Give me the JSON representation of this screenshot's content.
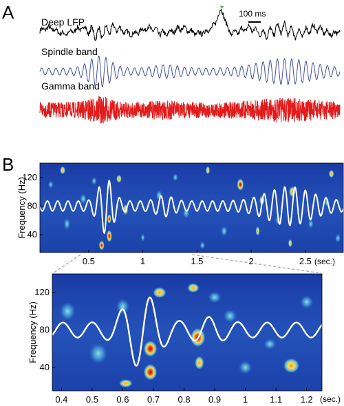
{
  "figure": {
    "panel_a": {
      "letter": "A",
      "asterisk": "*",
      "scale_bar_label": "100 ms",
      "traces": [
        {
          "label": "Deep LFP",
          "color": "#000000"
        },
        {
          "label": "Spindle band",
          "color": "#3f4d9e"
        },
        {
          "label": "Gamma band",
          "color": "#e21b1b"
        }
      ],
      "asterisk_color": "#2c9a2c"
    },
    "panel_b": {
      "letter": "B"
    }
  },
  "chart_data": [
    {
      "type": "heatmap",
      "title": "",
      "xlabel": "",
      "x_unit_label": "(sec.)",
      "ylabel": "Frequency (Hz)",
      "xlim": [
        0.05,
        2.85
      ],
      "ylim": [
        15,
        140
      ],
      "x_ticks": [
        0.5,
        1,
        1.5,
        2,
        2.5
      ],
      "x_tick_labels": [
        "0.5",
        "1",
        "1.5",
        "2",
        "2.5"
      ],
      "y_ticks": [
        40,
        80,
        120
      ],
      "y_tick_labels": [
        "40",
        "80",
        "120"
      ],
      "overlay_color": "#ffffff",
      "colormap": [
        "#0f2a96",
        "#2b64c8",
        "#66c4e0",
        "#f2e45a",
        "#f07a1e",
        "#b50f0f"
      ]
    },
    {
      "type": "heatmap",
      "title": "",
      "xlabel": "",
      "x_unit_label": "(sec.)",
      "ylabel": "Frequency (Hz)",
      "xlim": [
        0.37,
        1.25
      ],
      "ylim": [
        15,
        140
      ],
      "x_ticks": [
        0.4,
        0.5,
        0.6,
        0.7,
        0.8,
        0.9,
        1,
        1.1,
        1.2
      ],
      "x_tick_labels": [
        "0.4",
        "0.5",
        "0.6",
        "0.7",
        "0.8",
        "0.9",
        "1",
        "1.1",
        "1.2"
      ],
      "y_ticks": [
        40,
        80,
        120
      ],
      "y_tick_labels": [
        "40",
        "80",
        "120"
      ],
      "overlay_color": "#ffffff",
      "colormap": [
        "#0f2a96",
        "#2b64c8",
        "#66c4e0",
        "#f2e45a",
        "#f07a1e",
        "#b50f0f"
      ]
    }
  ]
}
